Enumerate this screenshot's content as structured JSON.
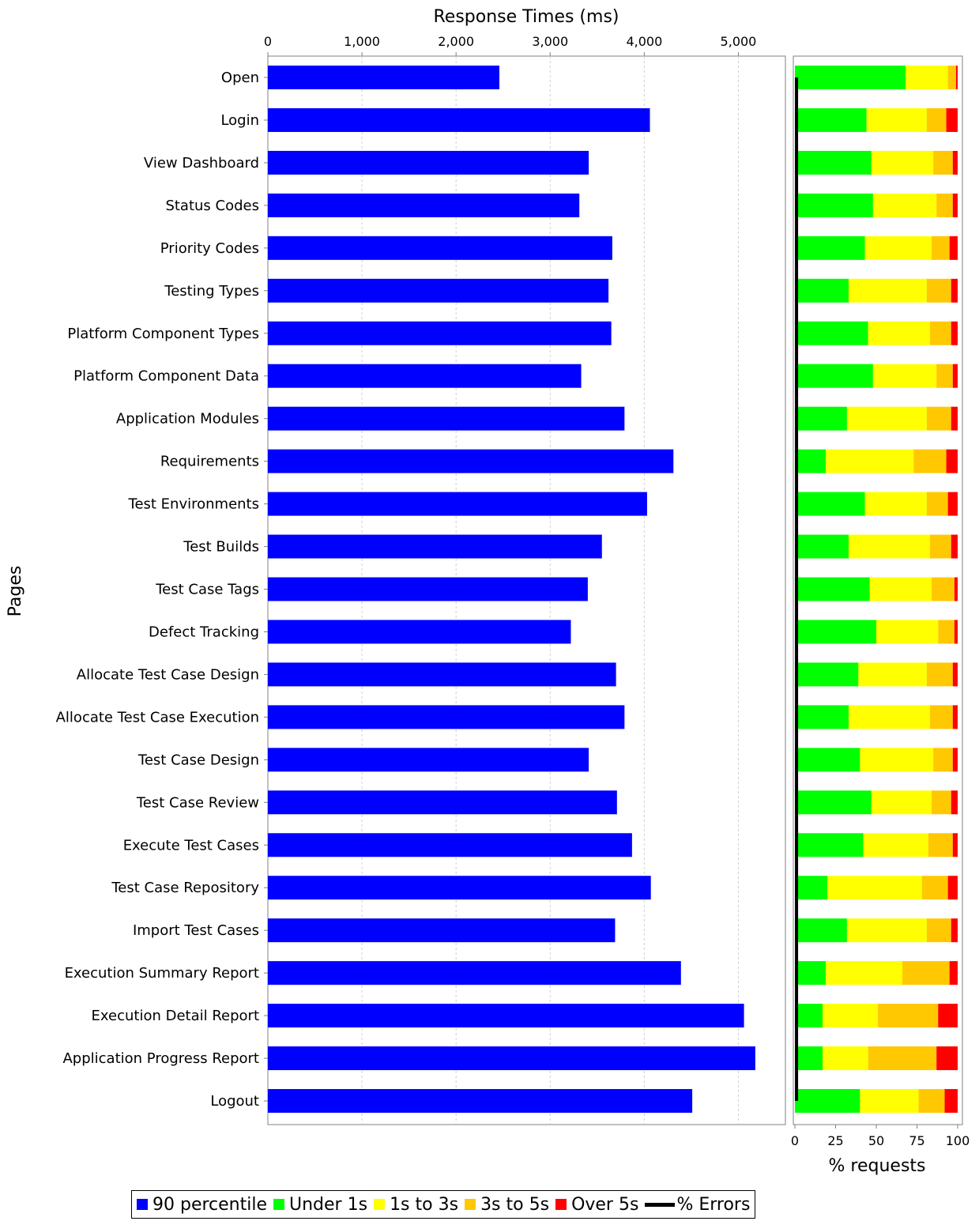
{
  "chart_data": [
    {
      "type": "bar",
      "orientation": "horizontal",
      "title": "Response Times (ms)",
      "ylabel": "Pages",
      "xlim": [
        0,
        5500
      ],
      "xticks": [
        "0",
        "1,000",
        "2,000",
        "3,000",
        "4,000",
        "5,000"
      ],
      "grid": "vertical dashed",
      "categories": [
        "Open",
        "Login",
        "View Dashboard",
        "Status Codes",
        "Priority Codes",
        "Testing Types",
        "Platform Component Types",
        "Platform Component Data",
        "Application Modules",
        "Requirements",
        "Test Environments",
        "Test Builds",
        "Test Case Tags",
        "Defect Tracking",
        "Allocate Test Case Design",
        "Allocate Test Case Execution",
        "Test Case Design",
        "Test Case Review",
        "Execute Test Cases",
        "Test Case Repository",
        "Import Test Cases",
        "Execution Summary Report",
        "Execution Detail Report",
        "Application Progress Report",
        "Logout"
      ],
      "series": [
        {
          "name": "90 percentile",
          "color": "#0000ff",
          "values": [
            2460,
            4060,
            3410,
            3310,
            3660,
            3620,
            3650,
            3330,
            3790,
            4310,
            4030,
            3550,
            3400,
            3220,
            3700,
            3790,
            3410,
            3710,
            3870,
            4070,
            3690,
            4390,
            5060,
            5180,
            4510
          ]
        }
      ]
    },
    {
      "type": "bar",
      "orientation": "horizontal",
      "stacked": true,
      "xlabel": "% requests",
      "xlim": [
        0,
        100
      ],
      "xticks": [
        "0",
        "25",
        "50",
        "75",
        "100"
      ],
      "series": [
        {
          "name": "Under 1s",
          "color": "#00ff00",
          "values": [
            68,
            44,
            47,
            48,
            43,
            33,
            45,
            48,
            32,
            19,
            43,
            33,
            46,
            50,
            39,
            33,
            40,
            47,
            42,
            20,
            32,
            19,
            17,
            17,
            40
          ]
        },
        {
          "name": "1s to 3s",
          "color": "#ffff00",
          "values": [
            26,
            37,
            38,
            39,
            41,
            48,
            38,
            39,
            49,
            54,
            38,
            50,
            38,
            38,
            42,
            50,
            45,
            37,
            40,
            58,
            49,
            47,
            34,
            28,
            36
          ]
        },
        {
          "name": "3s to 5s",
          "color": "#ffc800",
          "values": [
            5,
            12,
            12,
            10,
            11,
            15,
            13,
            10,
            15,
            20,
            13,
            13,
            14,
            10,
            16,
            14,
            12,
            12,
            15,
            16,
            15,
            29,
            37,
            42,
            16
          ]
        },
        {
          "name": "Over 5s",
          "color": "#ff0000",
          "values": [
            1,
            7,
            3,
            3,
            5,
            4,
            4,
            3,
            4,
            7,
            6,
            4,
            2,
            2,
            3,
            3,
            3,
            4,
            3,
            6,
            4,
            5,
            12,
            13,
            8
          ]
        },
        {
          "name": "% Errors",
          "color": "#000000",
          "values": [
            1,
            1,
            1,
            1,
            1,
            1,
            1,
            1,
            1,
            1,
            1,
            1,
            1,
            1,
            1,
            1,
            1,
            1,
            1,
            1,
            1,
            1,
            1,
            1,
            1
          ]
        }
      ]
    }
  ],
  "legend": {
    "items": [
      {
        "label": "90 percentile",
        "color": "#0000ff",
        "kind": "square"
      },
      {
        "label": "Under 1s",
        "color": "#00ff00",
        "kind": "square"
      },
      {
        "label": "1s to 3s",
        "color": "#ffff00",
        "kind": "square"
      },
      {
        "label": "3s to 5s",
        "color": "#ffc800",
        "kind": "square"
      },
      {
        "label": "Over 5s",
        "color": "#ff0000",
        "kind": "square"
      },
      {
        "label": "% Errors",
        "color": "#000000",
        "kind": "line"
      }
    ]
  }
}
